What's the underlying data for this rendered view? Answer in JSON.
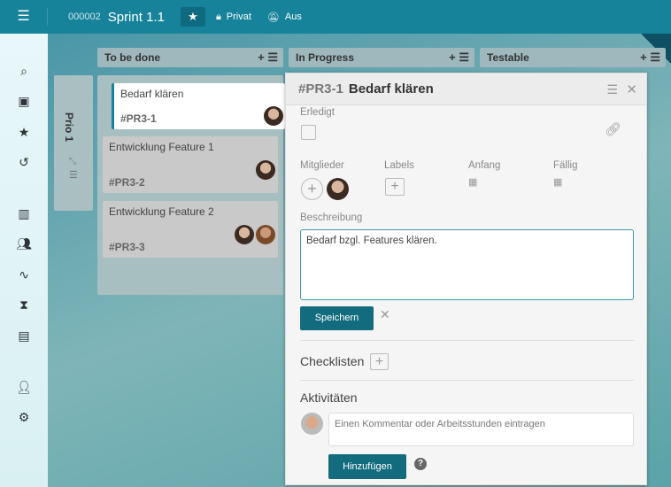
{
  "header": {
    "menu_icon": "hamburger-icon",
    "board_number": "000002",
    "board_title": "Sprint 1.1",
    "star_icon": "star-icon",
    "visibility": "Privat",
    "notifications": "Aus"
  },
  "sidebar": {
    "items": [
      "search-icon",
      "add-document-icon",
      "star-icon",
      "history-icon",
      "board-icon",
      "team-icon",
      "activity-icon",
      "hourglass-icon",
      "archive-icon",
      "user-icon",
      "settings-icon"
    ]
  },
  "lanes": [
    {
      "title": "To be done"
    },
    {
      "title": "In Progress"
    },
    {
      "title": "Testable"
    }
  ],
  "swimlane": {
    "title": "Prio 1"
  },
  "cards": [
    {
      "title": "Bedarf klären",
      "id": "#PR3-1"
    },
    {
      "title": "Entwicklung Feature 1",
      "id": "#PR3-2"
    },
    {
      "title": "Entwicklung Feature 2",
      "id": "#PR3-3"
    }
  ],
  "detail": {
    "id": "#PR3-1",
    "title": "Bedarf klären",
    "done_label": "Erledigt",
    "members_label": "Mitglieder",
    "labels_label": "Labels",
    "start_label": "Anfang",
    "due_label": "Fällig",
    "description_label": "Beschreibung",
    "description": "Bedarf bzgl. Features klären.",
    "save": "Speichern",
    "checklists": "Checklisten",
    "activities": "Aktivitäten",
    "comment_placeholder": "Einen Kommentar oder Arbeitsstunden eintragen",
    "add": "Hinzufügen"
  },
  "colors": {
    "header": "#17839b",
    "button": "#126c7d"
  }
}
